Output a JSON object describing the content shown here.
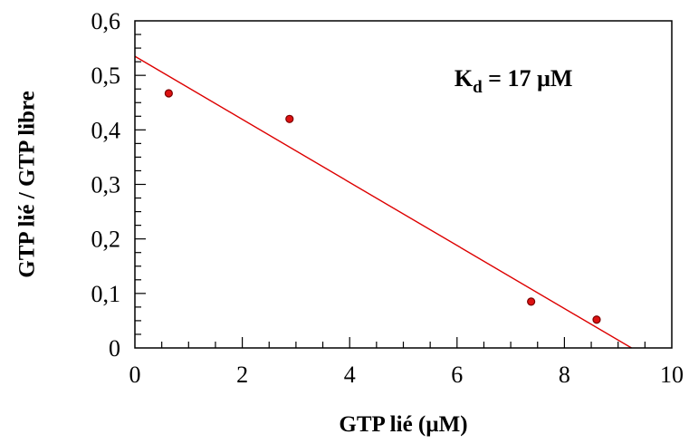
{
  "chart_data": {
    "type": "scatter",
    "xlabel": "GTP lié (µM)",
    "ylabel": "GTP lié / GTP libre",
    "xlim": [
      0,
      10
    ],
    "ylim": [
      0,
      0.6
    ],
    "x_ticks": [
      0,
      2,
      4,
      6,
      8,
      10
    ],
    "x_tick_labels": [
      "0",
      "2",
      "4",
      "6",
      "8",
      "10"
    ],
    "y_ticks": [
      0,
      0.1,
      0.2,
      0.3,
      0.4,
      0.5,
      0.6
    ],
    "y_tick_labels": [
      "0",
      "0,1",
      "0,2",
      "0,3",
      "0,4",
      "0,5",
      "0,6"
    ],
    "x_minor_step": 0.5,
    "y_minor_step": 0.025,
    "grid": false,
    "series": [
      {
        "points": [
          {
            "x": 0.63,
            "y": 0.467
          },
          {
            "x": 2.88,
            "y": 0.42
          },
          {
            "x": 7.38,
            "y": 0.085
          },
          {
            "x": 8.6,
            "y": 0.052
          }
        ]
      }
    ],
    "fit_line": {
      "x": [
        0,
        9.25
      ],
      "y": [
        0.535,
        0
      ]
    },
    "annotation": {
      "main": "K",
      "subscript": "d",
      "rest": " = 17 µM",
      "x": 5.95,
      "y": 0.48
    },
    "colors": {
      "marker_fill": "#dd1111",
      "marker_stroke": "#7a0000",
      "fit_line": "#dd0000",
      "axis": "#000000"
    }
  }
}
